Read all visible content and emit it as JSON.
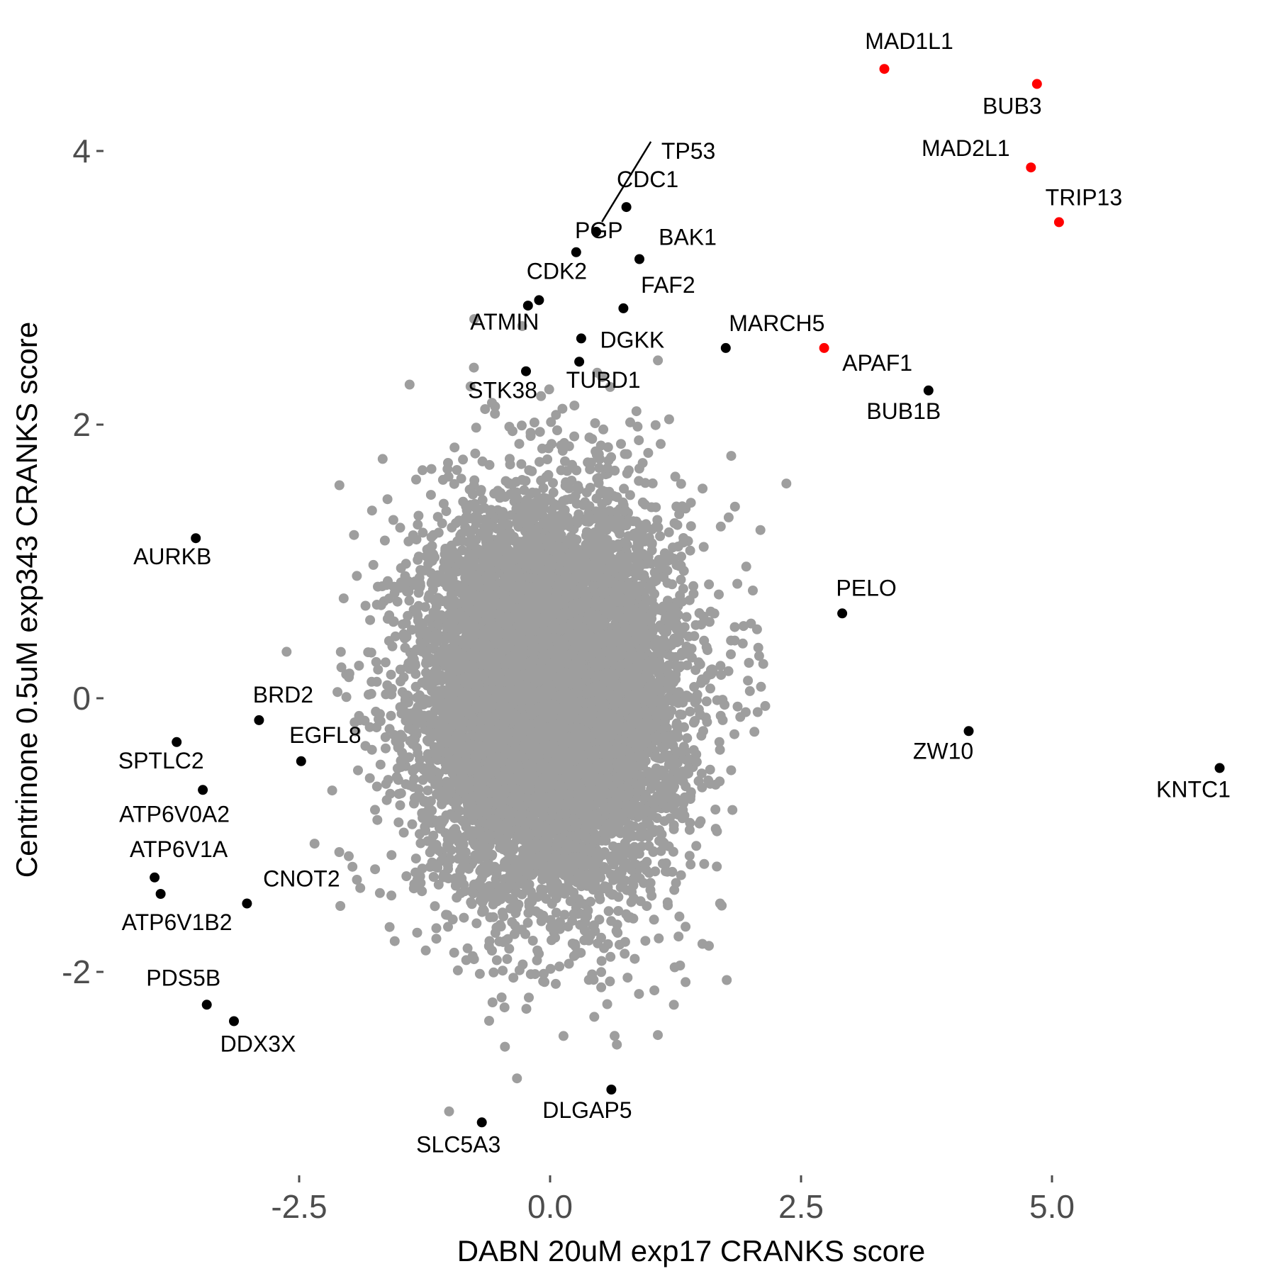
{
  "chart_data": {
    "type": "scatter",
    "title": "",
    "xlabel": "DABN 20uM exp17 CRANKS score",
    "ylabel": "Centrinone 0.5uM exp343 CRANKS score",
    "xlim": [
      -4.3,
      7.1
    ],
    "ylim": [
      -3.45,
      4.6
    ],
    "x_ticks": [
      -2.5,
      0.0,
      2.5,
      5.0
    ],
    "x_tick_labels": [
      "-2.5",
      "0.0",
      "2.5",
      "5.0"
    ],
    "y_ticks": [
      -2,
      0,
      2,
      4
    ],
    "y_tick_labels": [
      "-2",
      "0",
      "2",
      "4"
    ],
    "grid": false,
    "legend": "none",
    "colors": {
      "background": "#97979700",
      "highlight": "#ff0000",
      "labeled": "#000000"
    },
    "background_cloud": {
      "description_color": "#9e9e9e",
      "x_sd": 0.65,
      "y_sd": 0.72,
      "n_points": 9000
    },
    "highlighted_points": [
      {
        "label": "MAD1L1",
        "x": 3.33,
        "y": 4.6,
        "color": "#ff0000"
      },
      {
        "label": "BUB3",
        "x": 4.85,
        "y": 4.49,
        "color": "#ff0000"
      },
      {
        "label": "MAD2L1",
        "x": 4.79,
        "y": 3.88,
        "color": "#ff0000"
      },
      {
        "label": "TRIP13",
        "x": 5.07,
        "y": 3.48,
        "color": "#ff0000"
      },
      {
        "label": "APAF1",
        "x": 2.73,
        "y": 2.56,
        "color": "#ff0000"
      }
    ],
    "labeled_points": [
      {
        "label": "TP53",
        "x": 0.46,
        "y": 3.41
      },
      {
        "label": "CDC1",
        "x": 0.76,
        "y": 3.59
      },
      {
        "label": "PGP",
        "x": 0.26,
        "y": 3.26
      },
      {
        "label": "BAK1",
        "x": 0.89,
        "y": 3.21
      },
      {
        "label": "CDK2",
        "x": -0.11,
        "y": 2.91
      },
      {
        "label": "FAF2",
        "x": 0.73,
        "y": 2.85
      },
      {
        "label": "ATMIN",
        "x": -0.22,
        "y": 2.87
      },
      {
        "label": "DGKK",
        "x": 0.31,
        "y": 2.63
      },
      {
        "label": "TUBD1",
        "x": 0.29,
        "y": 2.46
      },
      {
        "label": "STK38",
        "x": -0.24,
        "y": 2.39
      },
      {
        "label": "MARCH5",
        "x": 1.75,
        "y": 2.56
      },
      {
        "label": "BUB1B",
        "x": 3.77,
        "y": 2.25
      },
      {
        "label": "AURKB",
        "x": -3.53,
        "y": 1.17
      },
      {
        "label": "PELO",
        "x": 2.91,
        "y": 0.62
      },
      {
        "label": "BRD2",
        "x": -2.9,
        "y": -0.16
      },
      {
        "label": "EGFL8",
        "x": -2.48,
        "y": -0.46
      },
      {
        "label": "SPTLC2",
        "x": -3.72,
        "y": -0.32
      },
      {
        "label": "ATP6V0A2",
        "x": -3.46,
        "y": -0.67
      },
      {
        "label": "ZW10",
        "x": 4.17,
        "y": -0.24
      },
      {
        "label": "KNTC1",
        "x": 6.67,
        "y": -0.51
      },
      {
        "label": "ATP6V1A",
        "x": -3.94,
        "y": -1.31
      },
      {
        "label": "ATP6V1B2",
        "x": -3.88,
        "y": -1.43
      },
      {
        "label": "CNOT2",
        "x": -3.02,
        "y": -1.5
      },
      {
        "label": "PDS5B",
        "x": -3.42,
        "y": -2.24
      },
      {
        "label": "DDX3X",
        "x": -3.15,
        "y": -2.36
      },
      {
        "label": "DLGAP5",
        "x": 0.61,
        "y": -2.86
      },
      {
        "label": "SLC5A3",
        "x": -0.68,
        "y": -3.1
      }
    ]
  }
}
